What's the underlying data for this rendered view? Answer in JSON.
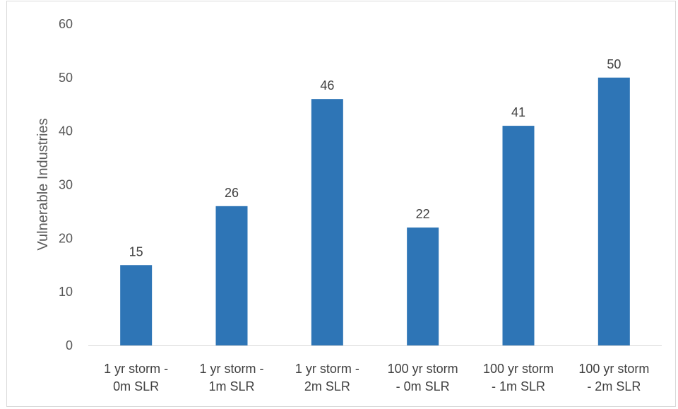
{
  "chart_data": {
    "type": "bar",
    "title": "",
    "xlabel": "",
    "ylabel": "Vulnerable Industries",
    "ylim": [
      0,
      60
    ],
    "yticks": [
      0,
      10,
      20,
      30,
      40,
      50,
      60
    ],
    "grid": false,
    "legend": "none",
    "categories": [
      [
        "1 yr storm -",
        "0m SLR"
      ],
      [
        "1 yr storm -",
        "1m SLR"
      ],
      [
        "1 yr storm -",
        "2m SLR"
      ],
      [
        "100 yr storm",
        "- 0m SLR"
      ],
      [
        "100 yr storm",
        "- 1m SLR"
      ],
      [
        "100 yr storm",
        "- 2m SLR"
      ]
    ],
    "values": [
      15,
      26,
      46,
      22,
      41,
      50
    ],
    "bar_color": "#2e75b6",
    "axis_color": "#d9d9d9"
  }
}
